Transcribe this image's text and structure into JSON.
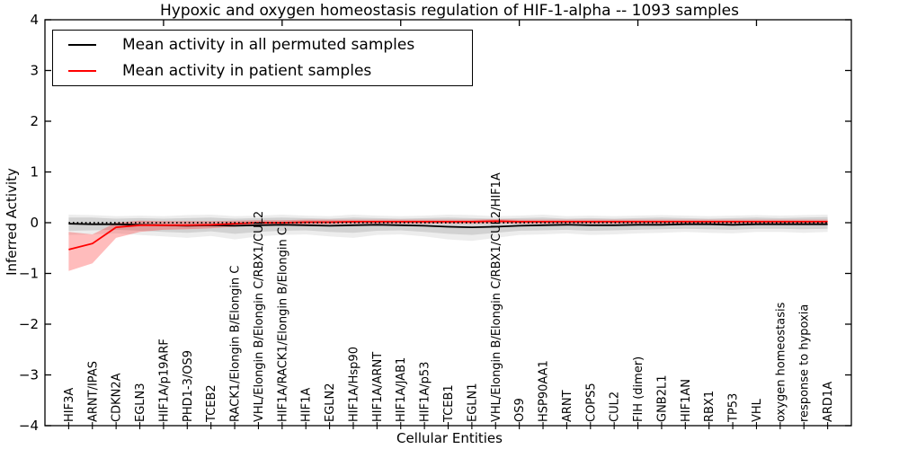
{
  "chart_data": {
    "type": "line",
    "title": "Hypoxic and oxygen homeostasis regulation of HIF-1-alpha -- 1093 samples",
    "xlabel": "Cellular Entities",
    "ylabel": "Inferred Activity",
    "ylim": [
      -4,
      4
    ],
    "xlim": [
      0,
      34
    ],
    "grid": false,
    "legend_position": "upper left",
    "yticks": [
      {
        "v": 4,
        "label": "4"
      },
      {
        "v": 3,
        "label": "3"
      },
      {
        "v": 2,
        "label": "2"
      },
      {
        "v": 1,
        "label": "1"
      },
      {
        "v": 0,
        "label": "0"
      },
      {
        "v": -1,
        "label": "−1"
      },
      {
        "v": -2,
        "label": "−2"
      },
      {
        "v": -3,
        "label": "−3"
      },
      {
        "v": -4,
        "label": "−4"
      }
    ],
    "top_xticks": [
      5,
      10,
      15,
      20,
      25,
      30
    ],
    "categories": [
      "HIF3A",
      "ARNT/IPAS",
      "CDKN2A",
      "EGLN3",
      "HIF1A/p19ARF",
      "PHD1-3/OS9",
      "TCEB2",
      "RACK1/Elongin B/Elongin C",
      "VHL/Elongin B/Elongin C/RBX1/CUL2",
      "HIF1A/RACK1/Elongin B/Elongin C",
      "HIF1A",
      "EGLN2",
      "HIF1A/Hsp90",
      "HIF1A/ARNT",
      "HIF1A/JAB1",
      "HIF1A/p53",
      "TCEB1",
      "EGLN1",
      "VHL/Elongin B/Elongin C/RBX1/CUL2/HIF1A",
      "OS9",
      "HSP90AA1",
      "ARNT",
      "COPS5",
      "CUL2",
      "FIH (dimer)",
      "GNB2L1",
      "HIF1AN",
      "RBX1",
      "TP53",
      "VHL",
      "oxygen homeostasis",
      "response to hypoxia",
      "ARD1A"
    ],
    "series": [
      {
        "name": "Mean activity in all permuted samples",
        "color": "#000000",
        "style": "solid",
        "values": [
          -0.02,
          -0.03,
          -0.03,
          -0.04,
          -0.05,
          -0.06,
          -0.05,
          -0.06,
          -0.05,
          -0.04,
          -0.05,
          -0.06,
          -0.05,
          -0.04,
          -0.05,
          -0.06,
          -0.08,
          -0.09,
          -0.08,
          -0.06,
          -0.05,
          -0.04,
          -0.05,
          -0.05,
          -0.04,
          -0.04,
          -0.03,
          -0.03,
          -0.04,
          -0.03,
          -0.03,
          -0.03,
          -0.03
        ]
      },
      {
        "name": "Mean activity in patient samples",
        "color": "#ff0000",
        "style": "solid",
        "values": [
          -0.53,
          -0.41,
          -0.09,
          -0.05,
          -0.05,
          -0.05,
          -0.04,
          -0.02,
          0.0,
          0.0,
          0.01,
          0.01,
          0.02,
          0.02,
          0.02,
          0.02,
          0.02,
          0.02,
          0.03,
          0.02,
          0.02,
          0.02,
          0.02,
          0.02,
          0.02,
          0.02,
          0.02,
          0.02,
          0.02,
          0.02,
          0.02,
          0.02,
          0.02
        ]
      },
      {
        "name": "zero reference",
        "color": "#000000",
        "style": "dotted",
        "values": [
          0,
          0,
          0,
          0,
          0,
          0,
          0,
          0,
          0,
          0,
          0,
          0,
          0,
          0,
          0,
          0,
          0,
          0,
          0,
          0,
          0,
          0,
          0,
          0,
          0,
          0,
          0,
          0,
          0,
          0,
          0,
          0,
          0
        ]
      }
    ],
    "bands": [
      {
        "name": "permuted samples outer spread",
        "color": "#999999",
        "opacity": 0.18,
        "upper": [
          0.16,
          0.15,
          0.13,
          0.14,
          0.13,
          0.15,
          0.16,
          0.13,
          0.14,
          0.16,
          0.14,
          0.13,
          0.16,
          0.14,
          0.13,
          0.14,
          0.16,
          0.15,
          0.13,
          0.14,
          0.16,
          0.13,
          0.14,
          0.13,
          0.14,
          0.15,
          0.14,
          0.13,
          0.14,
          0.15,
          0.14,
          0.15,
          0.16
        ],
        "lower": [
          -0.24,
          -0.23,
          -0.21,
          -0.24,
          -0.27,
          -0.3,
          -0.26,
          -0.33,
          -0.27,
          -0.24,
          -0.23,
          -0.27,
          -0.3,
          -0.24,
          -0.23,
          -0.27,
          -0.33,
          -0.36,
          -0.3,
          -0.24,
          -0.23,
          -0.21,
          -0.24,
          -0.23,
          -0.21,
          -0.2,
          -0.18,
          -0.2,
          -0.21,
          -0.18,
          -0.18,
          -0.2,
          -0.18
        ]
      },
      {
        "name": "permuted samples inner spread",
        "color": "#999999",
        "opacity": 0.32,
        "upper": [
          0.1,
          0.1,
          0.08,
          0.09,
          0.08,
          0.09,
          0.1,
          0.08,
          0.09,
          0.1,
          0.09,
          0.08,
          0.1,
          0.09,
          0.08,
          0.09,
          0.1,
          0.09,
          0.08,
          0.09,
          0.1,
          0.08,
          0.09,
          0.08,
          0.09,
          0.1,
          0.09,
          0.08,
          0.09,
          0.1,
          0.09,
          0.1,
          0.11
        ],
        "lower": [
          -0.16,
          -0.15,
          -0.14,
          -0.16,
          -0.18,
          -0.2,
          -0.17,
          -0.22,
          -0.18,
          -0.16,
          -0.15,
          -0.18,
          -0.2,
          -0.16,
          -0.15,
          -0.18,
          -0.22,
          -0.24,
          -0.2,
          -0.16,
          -0.15,
          -0.14,
          -0.16,
          -0.15,
          -0.14,
          -0.13,
          -0.12,
          -0.13,
          -0.14,
          -0.12,
          -0.12,
          -0.13,
          -0.12
        ]
      },
      {
        "name": "patient samples spread",
        "color": "#ff2222",
        "opacity": 0.3,
        "upper": [
          -0.18,
          -0.23,
          0.0,
          0.04,
          0.03,
          0.03,
          0.03,
          0.04,
          0.05,
          0.05,
          0.06,
          0.06,
          0.06,
          0.06,
          0.06,
          0.06,
          0.06,
          0.06,
          0.07,
          0.06,
          0.06,
          0.06,
          0.06,
          0.06,
          0.06,
          0.06,
          0.06,
          0.06,
          0.06,
          0.06,
          0.06,
          0.06,
          0.06
        ],
        "lower": [
          -0.95,
          -0.8,
          -0.3,
          -0.18,
          -0.14,
          -0.13,
          -0.11,
          -0.08,
          -0.04,
          -0.04,
          -0.03,
          -0.03,
          -0.02,
          -0.02,
          -0.02,
          -0.02,
          -0.02,
          -0.02,
          -0.01,
          -0.02,
          -0.02,
          -0.02,
          -0.02,
          -0.02,
          -0.02,
          -0.02,
          -0.02,
          -0.02,
          -0.02,
          -0.02,
          -0.02,
          -0.02,
          -0.02
        ]
      }
    ],
    "legend": [
      {
        "label": "Mean activity in all permuted samples",
        "color": "#000000"
      },
      {
        "label": "Mean activity in patient samples",
        "color": "#ff0000"
      }
    ]
  },
  "colors": {
    "frame": "#000000",
    "background": "#ffffff",
    "permuted_line": "#000000",
    "patient_line": "#ff0000"
  }
}
